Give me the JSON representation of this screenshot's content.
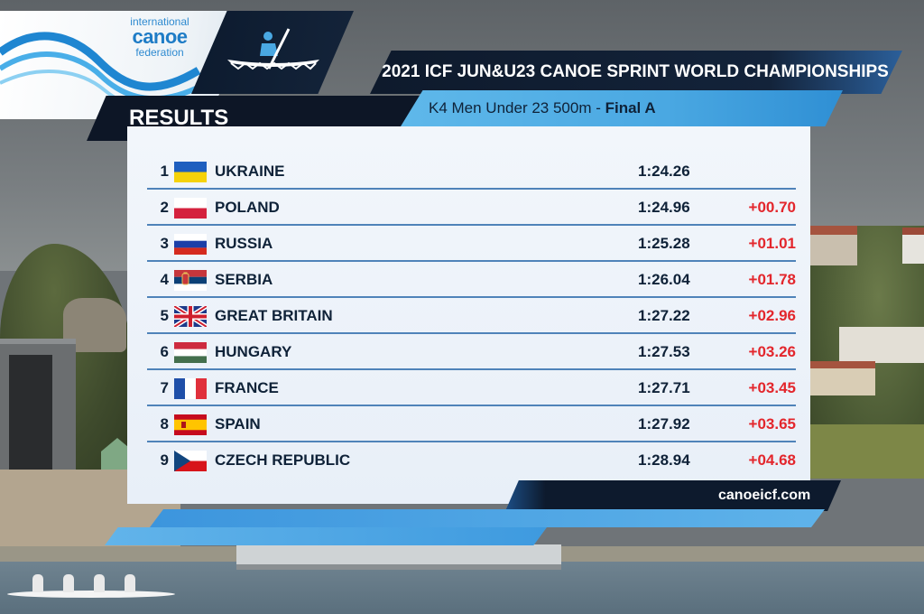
{
  "logo": {
    "line1": "international",
    "line2": "canoe",
    "line3": "federation"
  },
  "header": {
    "championship": "2021 ICF JUN&U23 CANOE SPRINT WORLD CHAMPIONSHIPS",
    "section": "RESULTS",
    "event": "K4 Men Under 23 500m - ",
    "stage": "Final A"
  },
  "results": [
    {
      "rank": "1",
      "country": "UKRAINE",
      "flag": "ukraine-flag",
      "time": "1:24.26",
      "diff": ""
    },
    {
      "rank": "2",
      "country": "POLAND",
      "flag": "poland-flag",
      "time": "1:24.96",
      "diff": "+00.70"
    },
    {
      "rank": "3",
      "country": "RUSSIA",
      "flag": "russia-flag",
      "time": "1:25.28",
      "diff": "+01.01"
    },
    {
      "rank": "4",
      "country": "SERBIA",
      "flag": "serbia-flag",
      "time": "1:26.04",
      "diff": "+01.78"
    },
    {
      "rank": "5",
      "country": "GREAT BRITAIN",
      "flag": "great-britain-flag",
      "time": "1:27.22",
      "diff": "+02.96"
    },
    {
      "rank": "6",
      "country": "HUNGARY",
      "flag": "hungary-flag",
      "time": "1:27.53",
      "diff": "+03.26"
    },
    {
      "rank": "7",
      "country": "FRANCE",
      "flag": "france-flag",
      "time": "1:27.71",
      "diff": "+03.45"
    },
    {
      "rank": "8",
      "country": "SPAIN",
      "flag": "spain-flag",
      "time": "1:27.92",
      "diff": "+03.65"
    },
    {
      "rank": "9",
      "country": "CZECH REPUBLIC",
      "flag": "czech-republic-flag",
      "time": "1:28.94",
      "diff": "+04.68"
    }
  ],
  "footer": {
    "website": "canoeicf.com"
  },
  "colors": {
    "navy": "#0d1626",
    "accent_blue": "#4aa8e2",
    "diff_red": "#e3262c",
    "panel_bg": "#eef3f9"
  }
}
